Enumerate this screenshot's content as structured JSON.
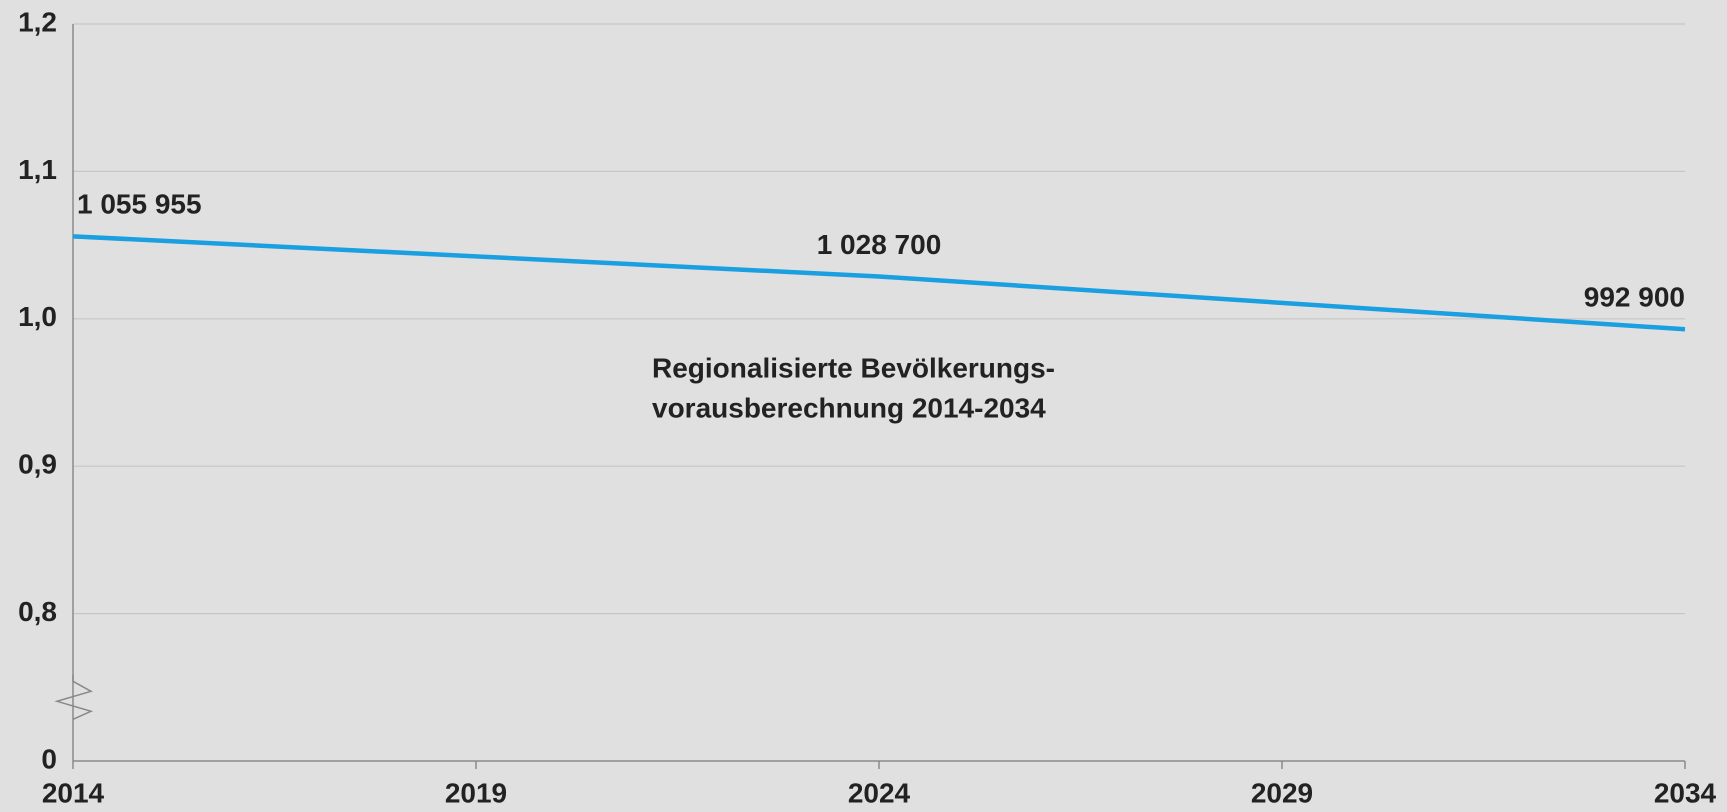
{
  "chart_data": {
    "type": "line",
    "x": [
      2014,
      2024,
      2034
    ],
    "series": [
      {
        "color": "#1a9fe0",
        "values": [
          1.055955,
          1.0287,
          0.9929
        ],
        "value_labels": [
          "1 055 955",
          "1 028 700",
          "992 900"
        ]
      }
    ],
    "annotation": [
      "Regionalisierte Bevölkerungs-",
      "vorausberechnung 2014-2034"
    ],
    "xlim": [
      2014,
      2034
    ],
    "xticks": [
      2014,
      2019,
      2024,
      2029,
      2034
    ],
    "ylim": [
      0.7,
      1.2
    ],
    "yticks": [
      {
        "value": 0,
        "label": "0"
      },
      {
        "value": 0.8,
        "label": "0,8"
      },
      {
        "value": 0.9,
        "label": "0,9"
      },
      {
        "value": 1.0,
        "label": "1,0"
      },
      {
        "value": 1.1,
        "label": "1,1"
      },
      {
        "value": 1.2,
        "label": "1,2"
      }
    ],
    "axis_break": true,
    "grid": true
  }
}
